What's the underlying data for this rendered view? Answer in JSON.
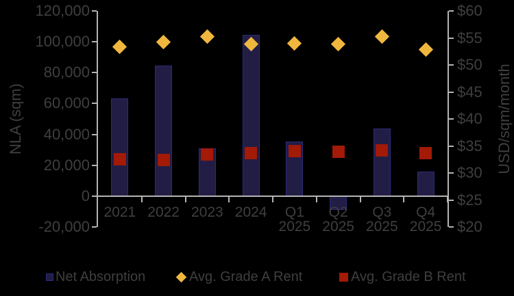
{
  "chart_data": {
    "type": "combo",
    "title": "",
    "categories": [
      [
        "2021"
      ],
      [
        "2022"
      ],
      [
        "2023"
      ],
      [
        "2024"
      ],
      [
        "Q1",
        "2025"
      ],
      [
        "Q2",
        "2025"
      ],
      [
        "Q3",
        "2025"
      ],
      [
        "Q4",
        "2025"
      ]
    ],
    "series": [
      {
        "name": "Net Absorption",
        "type": "bar",
        "axis": "left",
        "values": [
          63500,
          84500,
          31000,
          104500,
          35500,
          -9000,
          44000,
          16000
        ]
      },
      {
        "name": "Avg. Grade A Rent",
        "type": "diamond",
        "axis": "right",
        "values": [
          53.3,
          54.3,
          55.2,
          53.8,
          54.0,
          53.9,
          55.2,
          52.9
        ]
      },
      {
        "name": "Avg. Grade B Rent",
        "type": "square",
        "axis": "right",
        "values": [
          32.5,
          32.4,
          33.4,
          33.7,
          34.0,
          33.9,
          34.2,
          33.7
        ]
      }
    ],
    "left_axis": {
      "title": "NLA (sqm)",
      "min": -20000,
      "max": 120000,
      "step": 20000,
      "tick_labels": [
        "-20,000",
        "0",
        "20,000",
        "40,000",
        "60,000",
        "80,000",
        "100,000",
        "120,000"
      ]
    },
    "right_axis": {
      "title": "USD/sqm/month",
      "min": 20,
      "max": 60,
      "step": 5,
      "tick_labels": [
        "$20",
        "$25",
        "$30",
        "$35",
        "$40",
        "$45",
        "$50",
        "$55",
        "$60"
      ]
    },
    "legend_position": "bottom",
    "grid": false,
    "colors": {
      "background": "#000000",
      "axis_line": "#B5B5B5",
      "text": "#3F3F3F",
      "bar_fill": "#221D45",
      "bar_border": "#2C2C7A",
      "grade_a_fill": "#F0B73E",
      "grade_b_fill": "#A31A07"
    }
  }
}
